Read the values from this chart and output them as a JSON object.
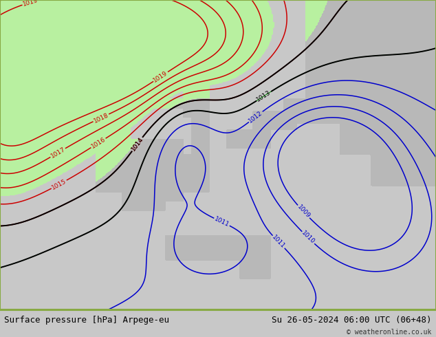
{
  "title_left": "Surface pressure [hPa] Arpege-eu",
  "title_right": "Su 26-05-2024 06:00 UTC (06+48)",
  "copyright": "© weatheronline.co.uk",
  "bg_color": "#c8c8c8",
  "sea_color": "#c8c8c8",
  "land_color_gray": "#b8b8b8",
  "green_fill_color": "#b8f0a0",
  "bottom_bar_color": "#dce8d0",
  "contour_red": "#cc0000",
  "contour_black": "#000000",
  "contour_blue": "#0000cc",
  "contour_green": "#008800",
  "border_color": "#88aa44",
  "font_size_title": 9,
  "font_size_label": 7,
  "font_size_copyright": 7
}
